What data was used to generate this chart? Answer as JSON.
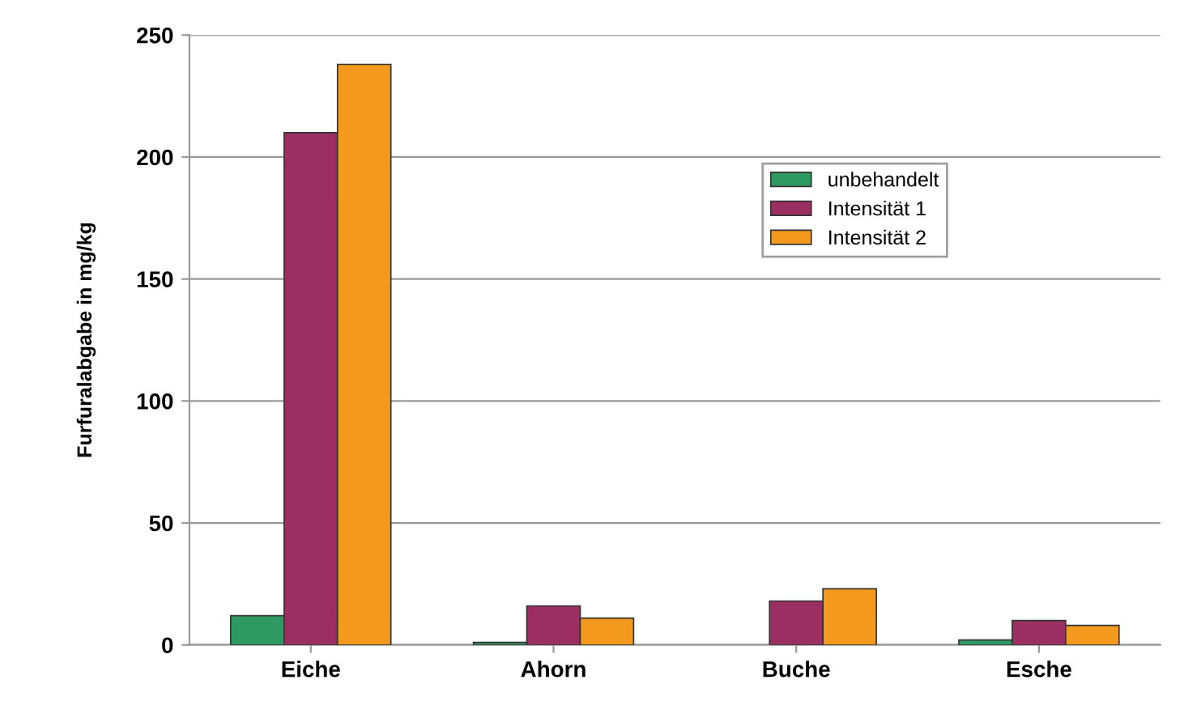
{
  "chart_data": {
    "type": "bar",
    "ylabel": "Furfuralabgabe in mg/kg",
    "categories": [
      "Eiche",
      "Ahorn",
      "Buche",
      "Esche"
    ],
    "series": [
      {
        "name": "unbehandelt",
        "color": "#2e9a62",
        "values": [
          12,
          1,
          null,
          2
        ]
      },
      {
        "name": "Intensität 1",
        "color": "#9b2f62",
        "values": [
          210,
          16,
          18,
          10
        ]
      },
      {
        "name": "Intensität 2",
        "color": "#f39a1e",
        "values": [
          238,
          11,
          23,
          8
        ]
      }
    ],
    "ylim": [
      0,
      250
    ],
    "yticks": [
      0,
      50,
      100,
      150,
      200,
      250
    ],
    "grid": "y",
    "legend": "top right"
  }
}
